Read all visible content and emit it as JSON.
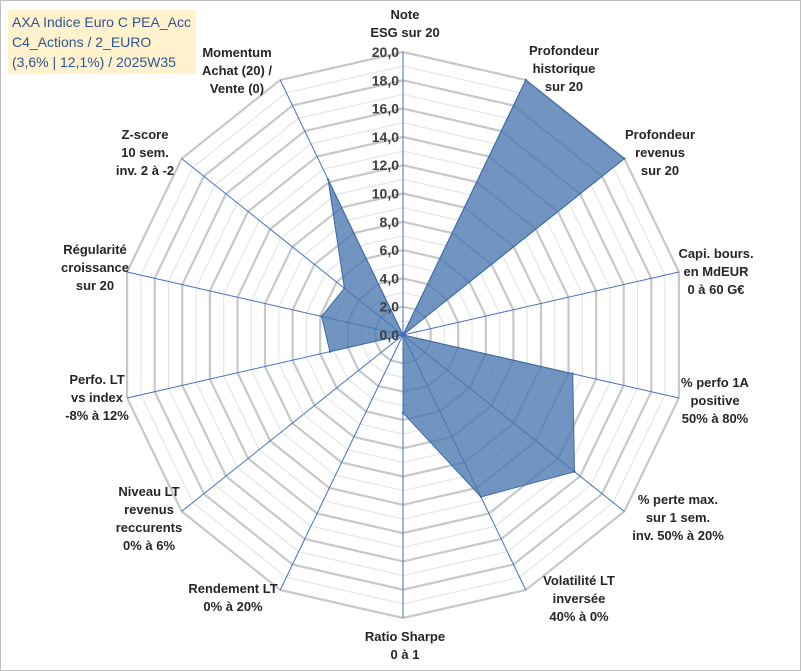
{
  "title_lines": [
    "AXA Indice Euro C PEA_Acc",
    "C4_Actions / 2_EURO",
    "(3,6% | 12,1%) / 2025W35"
  ],
  "chart_data": {
    "type": "radar",
    "title": "AXA Indice Euro C PEA_Acc C4_Actions / 2_EURO (3,6% | 12,1%) / 2025W35",
    "rlim": [
      0,
      20
    ],
    "grid": true,
    "ticks": [
      "0,0",
      "2,0",
      "4,0",
      "6,0",
      "8,0",
      "10,0",
      "12,0",
      "14,0",
      "16,0",
      "18,0",
      "20,0"
    ],
    "categories": [
      [
        "Note",
        "ESG sur 20"
      ],
      [
        "Profondeur",
        "historique",
        "sur 20"
      ],
      [
        "Profondeur",
        "revenus",
        "sur 20"
      ],
      [
        "Capi. bours.",
        "en MdEUR",
        "0 à 60 G€"
      ],
      [
        "% perfo 1A",
        "positive",
        "50% à 80%"
      ],
      [
        "% perte max.",
        "sur 1 sem.",
        "inv. 50% à 20%"
      ],
      [
        "Volatilité LT",
        "inversée",
        "40% à 0%"
      ],
      [
        "Ratio Sharpe",
        "0 à 1"
      ],
      [
        "Rendement LT",
        "0% à 20%"
      ],
      [
        "Niveau LT",
        "revenus",
        "reccurents",
        "0% à 6%"
      ],
      [
        "Perfo. LT",
        "vs index",
        "-8% à 12%"
      ],
      [
        "Régularité",
        "croissance",
        "sur 20"
      ],
      [
        "Z-score",
        "10 sem.",
        "inv. 2 à -2"
      ],
      [
        "Momentum",
        "Achat (20) /",
        "Vente (0)"
      ]
    ],
    "values": [
      0,
      20,
      20,
      0,
      12.3,
      15.5,
      12.7,
      5.5,
      0,
      0,
      5.3,
      5.9,
      5.3,
      12.2
    ],
    "colors": {
      "fill": "#4a76b0",
      "stroke": "#3e6aa8",
      "grid": "#c8c8c8",
      "spoke": "#4472c4"
    }
  }
}
